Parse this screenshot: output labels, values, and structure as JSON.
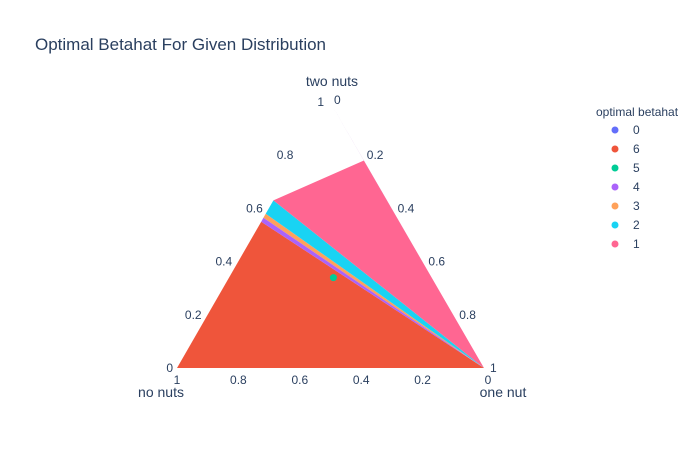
{
  "chart_data": {
    "type": "ternary-area",
    "title": "Optimal Betahat For Given Distribution",
    "axes": {
      "a": {
        "label": "two nuts",
        "ticks": [
          "0.2",
          "0.4",
          "0.6",
          "0.8",
          "1"
        ]
      },
      "b": {
        "label": "no nuts",
        "ticks": [
          "0.2",
          "0.4",
          "0.6",
          "0.8",
          "1"
        ]
      },
      "c": {
        "label": "one nut",
        "ticks": [
          "0.2",
          "0.4",
          "0.6",
          "0.8",
          "1"
        ]
      }
    },
    "corner_zero_labels": {
      "a": "0",
      "b": "0",
      "c": "0"
    },
    "legend": {
      "title": "optimal betahat",
      "position": "top-right",
      "items": [
        {
          "name": "0",
          "color": "#636efa"
        },
        {
          "name": "6",
          "color": "#ef553b"
        },
        {
          "name": "5",
          "color": "#00cc96"
        },
        {
          "name": "4",
          "color": "#ab63fa"
        },
        {
          "name": "3",
          "color": "#ffa15a"
        },
        {
          "name": "2",
          "color": "#19d3f3"
        },
        {
          "name": "1",
          "color": "#ff6692"
        }
      ]
    },
    "regions": [
      {
        "name": "0",
        "points": [
          [
            1,
            0,
            0
          ],
          [
            0,
            0,
            1
          ],
          [
            0.78,
            0,
            0.22
          ]
        ]
      },
      {
        "name": "6",
        "points": [
          [
            0,
            1,
            0
          ],
          [
            0,
            0,
            1
          ],
          [
            0.55,
            0.45,
            0
          ]
        ]
      },
      {
        "name": "3",
        "points": [
          [
            0.565,
            0.435,
            0
          ],
          [
            0.58,
            0.42,
            0
          ],
          [
            0,
            0,
            1
          ]
        ]
      },
      {
        "name": "2",
        "points": [
          [
            0.58,
            0.42,
            0
          ],
          [
            0.63,
            0.37,
            0
          ],
          [
            0,
            0,
            1
          ]
        ]
      },
      {
        "name": "1",
        "points": [
          [
            0.63,
            0.37,
            0
          ],
          [
            0.78,
            0,
            0.22
          ],
          [
            1,
            0,
            0
          ],
          [
            0,
            0,
            1
          ]
        ]
      },
      {
        "name": "4",
        "points": [
          [
            0.55,
            0.45,
            0
          ],
          [
            0.565,
            0.435,
            0
          ],
          [
            0,
            0,
            1
          ]
        ]
      }
    ],
    "points": [
      {
        "name": "5",
        "a": 0.34,
        "b": 0.32,
        "c": 0.34
      }
    ]
  }
}
